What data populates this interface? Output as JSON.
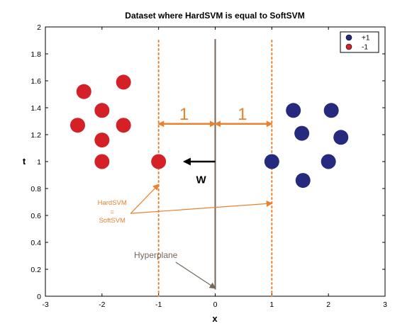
{
  "chart_data": {
    "type": "scatter",
    "title": "Dataset where HardSVM is equal to SoftSVM",
    "xlabel": "x",
    "ylabel": "t",
    "xlim": [
      -3,
      3
    ],
    "ylim": [
      0,
      2
    ],
    "xticks": [
      -3,
      -2,
      -1,
      0,
      1,
      2,
      3
    ],
    "yticks": [
      0,
      0.2,
      0.4,
      0.6,
      0.8,
      1,
      1.2,
      1.4,
      1.6,
      1.8,
      2
    ],
    "grid": false,
    "legend_position": "top-right",
    "series": [
      {
        "name": "+1",
        "color": "#252a7e",
        "points": [
          [
            1.0,
            1.0
          ],
          [
            1.38,
            1.38
          ],
          [
            1.53,
            1.21
          ],
          [
            2.05,
            1.38
          ],
          [
            2.22,
            1.18
          ],
          [
            2.0,
            1.0
          ],
          [
            1.55,
            0.86
          ]
        ]
      },
      {
        "name": "-1",
        "color": "#d42027",
        "points": [
          [
            -1.0,
            1.0
          ],
          [
            -2.0,
            1.0
          ],
          [
            -2.0,
            1.16
          ],
          [
            -2.0,
            1.38
          ],
          [
            -2.32,
            1.52
          ],
          [
            -1.62,
            1.59
          ],
          [
            -2.43,
            1.27
          ],
          [
            -1.62,
            1.27
          ]
        ]
      }
    ],
    "hyperplane": {
      "x": 0,
      "y_from": 0.05,
      "y_to": 1.91,
      "color": "#75665a"
    },
    "margins": {
      "x": [
        -1,
        1
      ],
      "color": "#e8822e"
    },
    "margin_arrow_y": 1.28,
    "margin_labels": [
      "1",
      "1"
    ],
    "w_arrow": {
      "from": [
        0,
        1.0
      ],
      "to": [
        -0.55,
        1.0
      ],
      "label": "W"
    },
    "annotations": {
      "hardsvm_lines": [
        "HardSVM",
        "=",
        "SoftSVM"
      ],
      "hardsvm_targets": [
        [
          -1,
          0.83
        ],
        [
          1,
          0.69
        ]
      ],
      "hardsvm_anchor": [
        -1.82,
        0.615
      ],
      "hyperplane_label": "Hyperplane",
      "hyperplane_target": [
        0,
        0.06
      ],
      "hyperplane_anchor": [
        -1.05,
        0.285
      ]
    }
  }
}
